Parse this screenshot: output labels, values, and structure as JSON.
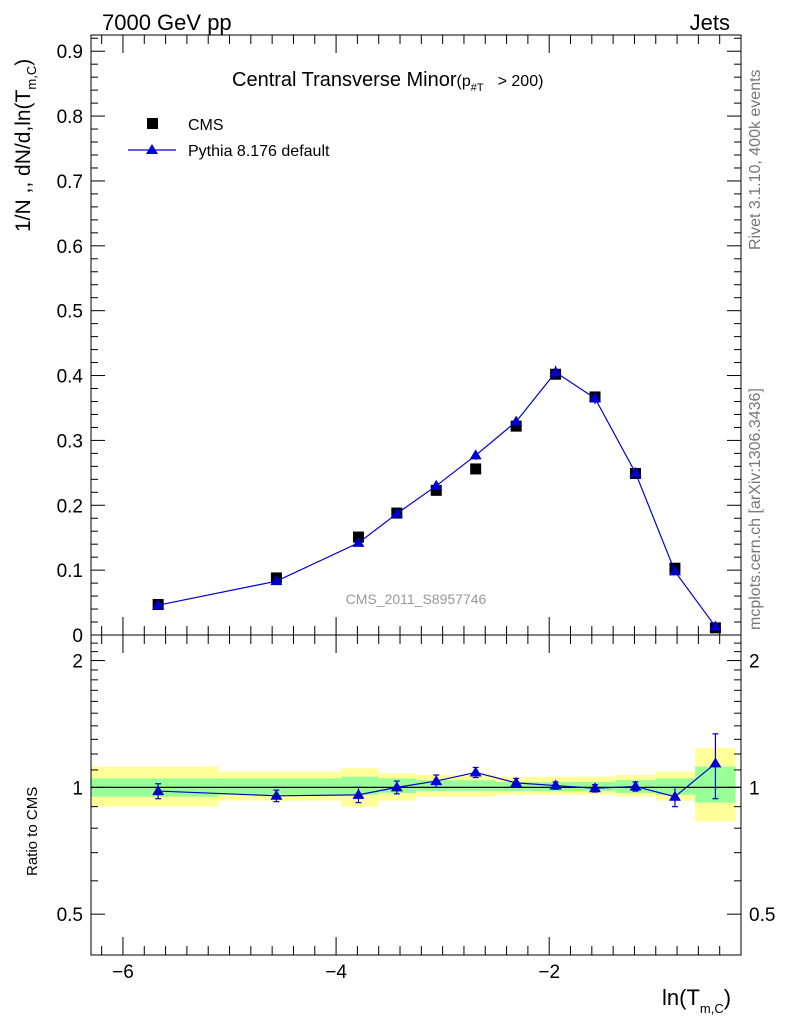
{
  "header": {
    "left": "7000 GeV pp",
    "right": "Jets"
  },
  "side_labels": {
    "rivet": "Rivet 3.1.10,  400k events",
    "mcplots": "mcplots.cern.ch [arXiv:1306.3436]"
  },
  "chart_data": {
    "type": "scatter",
    "title_main": "Central Transverse Minor",
    "title_sub_open": "(p",
    "title_sub_sub": "#T",
    "title_sub_close": "> 200)",
    "watermark": "CMS_2011_S8957746",
    "ylabel": "1/N ,, dN/d,ln(T",
    "ylabel_sub": "m,C",
    "ylabel_close": ")",
    "xlabel": "ln(T",
    "xlabel_sub": "m,C",
    "xlabel_close": ")",
    "xlim": [
      -6.3,
      -0.2
    ],
    "ylim": [
      0,
      0.925
    ],
    "x_ticks": [
      -6,
      -4,
      -2
    ],
    "x_tick_labels": [
      "−6",
      "−4",
      "−2"
    ],
    "y_ticks": [
      0,
      0.1,
      0.2,
      0.3,
      0.4,
      0.5,
      0.6,
      0.7,
      0.8,
      0.9
    ],
    "y_tick_labels": [
      "0",
      "0.1",
      "0.2",
      "0.3",
      "0.4",
      "0.5",
      "0.6",
      "0.7",
      "0.8",
      "0.9"
    ],
    "legend": {
      "placement": "top-left",
      "items": [
        {
          "label": "CMS",
          "marker": "square",
          "color": "#000000"
        },
        {
          "label": "Pythia 8.176 default",
          "marker": "triangle-line",
          "color": "#0000cc"
        }
      ]
    },
    "series": [
      {
        "name": "CMS",
        "color": "#000000",
        "points": [
          {
            "x": -5.67,
            "y": 0.047,
            "err": 0.003
          },
          {
            "x": -4.56,
            "y": 0.088,
            "err": 0.004
          },
          {
            "x": -3.79,
            "y": 0.151,
            "err": 0.005
          },
          {
            "x": -3.43,
            "y": 0.188,
            "err": 0.005
          },
          {
            "x": -3.06,
            "y": 0.223,
            "err": 0.006
          },
          {
            "x": -2.69,
            "y": 0.256,
            "err": 0.006
          },
          {
            "x": -2.31,
            "y": 0.322,
            "err": 0.006
          },
          {
            "x": -1.94,
            "y": 0.402,
            "err": 0.007
          },
          {
            "x": -1.57,
            "y": 0.367,
            "err": 0.007
          },
          {
            "x": -1.19,
            "y": 0.249,
            "err": 0.006
          },
          {
            "x": -0.82,
            "y": 0.103,
            "err": 0.004
          },
          {
            "x": -0.44,
            "y": 0.011,
            "err": 0.002
          }
        ]
      },
      {
        "name": "Pythia 8.176 default",
        "color": "#0000cc",
        "points": [
          {
            "x": -5.67,
            "y": 0.046,
            "err": 0.002
          },
          {
            "x": -4.56,
            "y": 0.083,
            "err": 0.003
          },
          {
            "x": -3.79,
            "y": 0.142,
            "err": 0.004
          },
          {
            "x": -3.43,
            "y": 0.187,
            "err": 0.005
          },
          {
            "x": -3.06,
            "y": 0.23,
            "err": 0.006
          },
          {
            "x": -2.69,
            "y": 0.277,
            "err": 0.007
          },
          {
            "x": -2.31,
            "y": 0.329,
            "err": 0.008
          },
          {
            "x": -1.94,
            "y": 0.405,
            "err": 0.01
          },
          {
            "x": -1.57,
            "y": 0.365,
            "err": 0.009
          },
          {
            "x": -1.19,
            "y": 0.25,
            "err": 0.007
          },
          {
            "x": -0.82,
            "y": 0.098,
            "err": 0.004
          },
          {
            "x": -0.44,
            "y": 0.013,
            "err": 0.002
          }
        ]
      }
    ],
    "ratio": {
      "ylabel": "Ratio to CMS",
      "ylim": [
        0.4,
        2.3
      ],
      "y_ticks": [
        0.5,
        1,
        2
      ],
      "y_tick_labels": [
        "0.5",
        "1",
        "2"
      ],
      "band_colors": {
        "inner": "#99ff99",
        "outer": "#ffff99"
      },
      "bands": [
        {
          "x0": -6.3,
          "x1": -5.1,
          "inner": [
            0.95,
            1.05
          ],
          "outer": [
            0.9,
            1.12
          ]
        },
        {
          "x0": -5.1,
          "x1": -3.95,
          "inner": [
            0.96,
            1.05
          ],
          "outer": [
            0.93,
            1.09
          ]
        },
        {
          "x0": -3.95,
          "x1": -3.6,
          "inner": [
            0.96,
            1.06
          ],
          "outer": [
            0.9,
            1.11
          ]
        },
        {
          "x0": -3.6,
          "x1": -3.25,
          "inner": [
            0.97,
            1.05
          ],
          "outer": [
            0.93,
            1.08
          ]
        },
        {
          "x0": -3.25,
          "x1": -2.88,
          "inner": [
            0.98,
            1.04
          ],
          "outer": [
            0.95,
            1.07
          ]
        },
        {
          "x0": -2.88,
          "x1": -2.5,
          "inner": [
            0.98,
            1.04
          ],
          "outer": [
            0.95,
            1.07
          ]
        },
        {
          "x0": -2.5,
          "x1": -2.13,
          "inner": [
            0.98,
            1.03
          ],
          "outer": [
            0.96,
            1.06
          ]
        },
        {
          "x0": -2.13,
          "x1": -1.75,
          "inner": [
            0.98,
            1.03
          ],
          "outer": [
            0.96,
            1.06
          ]
        },
        {
          "x0": -1.75,
          "x1": -1.38,
          "inner": [
            0.98,
            1.03
          ],
          "outer": [
            0.96,
            1.06
          ]
        },
        {
          "x0": -1.38,
          "x1": -1.0,
          "inner": [
            0.97,
            1.04
          ],
          "outer": [
            0.95,
            1.07
          ]
        },
        {
          "x0": -1.0,
          "x1": -0.63,
          "inner": [
            0.96,
            1.05
          ],
          "outer": [
            0.93,
            1.09
          ]
        },
        {
          "x0": -0.63,
          "x1": -0.25,
          "inner": [
            0.92,
            1.12
          ],
          "outer": [
            0.83,
            1.24
          ]
        }
      ],
      "points": [
        {
          "x": -5.67,
          "y": 0.98,
          "err": 0.04
        },
        {
          "x": -4.56,
          "y": 0.955,
          "err": 0.03
        },
        {
          "x": -3.79,
          "y": 0.96,
          "err": 0.04
        },
        {
          "x": -3.43,
          "y": 1.0,
          "err": 0.035
        },
        {
          "x": -3.06,
          "y": 1.035,
          "err": 0.035
        },
        {
          "x": -2.69,
          "y": 1.085,
          "err": 0.03
        },
        {
          "x": -2.31,
          "y": 1.025,
          "err": 0.025
        },
        {
          "x": -1.94,
          "y": 1.01,
          "err": 0.02
        },
        {
          "x": -1.57,
          "y": 0.995,
          "err": 0.02
        },
        {
          "x": -1.19,
          "y": 1.005,
          "err": 0.025
        },
        {
          "x": -0.82,
          "y": 0.95,
          "err": 0.05
        },
        {
          "x": -0.44,
          "y": 1.14,
          "err": 0.2
        }
      ]
    }
  }
}
